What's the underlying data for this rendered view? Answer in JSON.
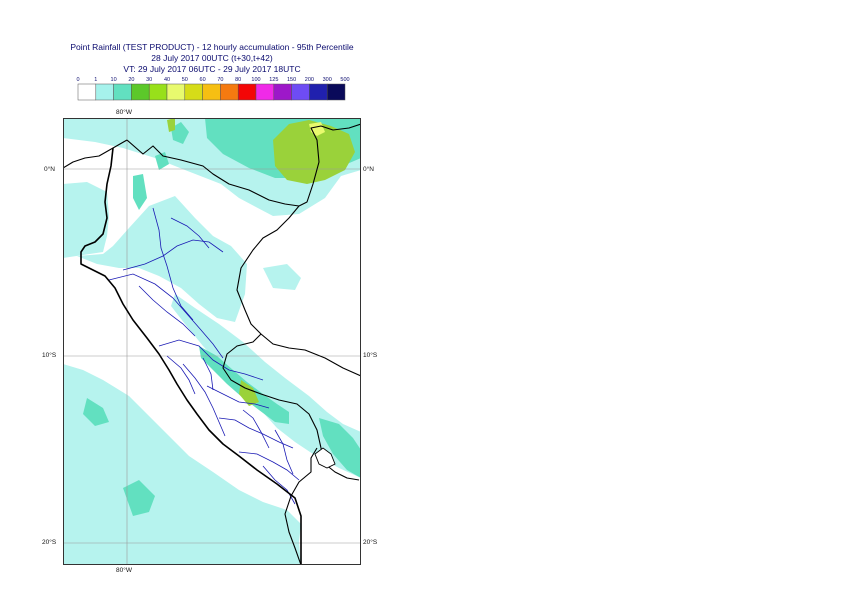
{
  "title": {
    "line1": "Point Rainfall (TEST PRODUCT) - 12 hourly accumulation - 95th Percentile",
    "line2": "28 July 2017 00UTC (t+30,t+42)",
    "line3": "VT: 29 July 2017 06UTC - 29 July 2017 18UTC"
  },
  "legend": {
    "ticks": [
      "0",
      "1",
      "10",
      "20",
      "30",
      "40",
      "50",
      "60",
      "70",
      "80",
      "100",
      "125",
      "150",
      "200",
      "300",
      "500"
    ],
    "colors": [
      "#ffffff",
      "#a6f2ec",
      "#62e0c0",
      "#5cc82a",
      "#98e01a",
      "#e8fa6e",
      "#d6dc18",
      "#f6bf12",
      "#f57a10",
      "#f40606",
      "#f02ae8",
      "#9d18c9",
      "#6e4cf4",
      "#2020ae",
      "#0a0a5a"
    ]
  },
  "map": {
    "labels": {
      "lon_top": "80°W",
      "lon_bottom": "80°W",
      "lat_0_left": "0°N",
      "lat_0_right": "0°N",
      "lat_10_left": "10°S",
      "lat_10_right": "10°S",
      "lat_20_left": "20°S",
      "lat_20_right": "20°S"
    },
    "colors": {
      "ocean_light": "#b6f3ee",
      "medium": "#62e0c0",
      "green": "#9ad23a",
      "yellow": "#e8fa6e",
      "border": "#000000",
      "regions": "#1a1ab4",
      "grid": "#9a9a9a"
    }
  }
}
